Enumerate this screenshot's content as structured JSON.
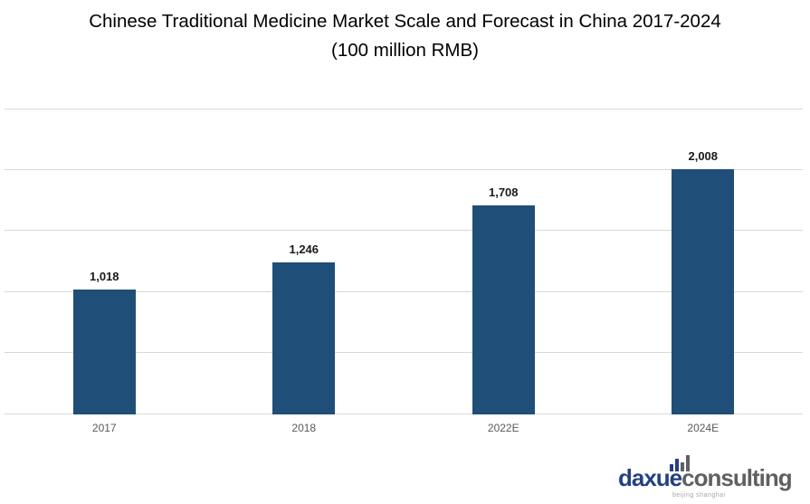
{
  "title": {
    "line1": "Chinese Traditional Medicine Market Scale and Forecast in China 2017-2024",
    "line2": "(100 million RMB)"
  },
  "chart_data": {
    "type": "bar",
    "title": "Chinese Traditional Medicine Market Scale and Forecast in China 2017-2024",
    "subtitle": "(100 million RMB)",
    "categories": [
      "2017",
      "2018",
      "2022E",
      "2024E"
    ],
    "values": [
      1018,
      1246,
      1708,
      2008
    ],
    "value_labels": [
      "1,018",
      "1,246",
      "1,708",
      "2,008"
    ],
    "xlabel": "",
    "ylabel": "",
    "ylim": [
      0,
      2500
    ],
    "gridline_step": 500,
    "grid": true,
    "y_tick_labels_visible": false,
    "legend_position": "none",
    "bar_color": "#1F4E79",
    "gridline_color": "#D8D8D8",
    "value_label_color": "#1A1A1A",
    "category_label_color": "#595959"
  },
  "logo": {
    "brand_part1": "daxue",
    "brand_part2": "consulting",
    "tagline": "beijing shanghai",
    "brand_part1_color": "#24417E",
    "brand_part2_color": "#5E6063",
    "icon_name": "bar-chart-icon",
    "icon_bar_colors": [
      "#24417E",
      "#24417E",
      "#5E6063",
      "#5E6063"
    ],
    "icon_bar_heights": [
      8,
      14,
      10,
      18
    ]
  }
}
